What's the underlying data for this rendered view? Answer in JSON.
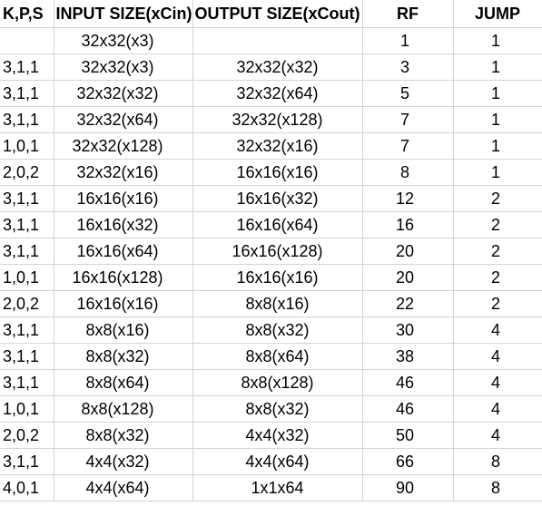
{
  "table": {
    "headers": [
      "K,P,S",
      "INPUT SIZE(xCin)",
      "OUTPUT SIZE(xCout)",
      "RF",
      "JUMP"
    ],
    "rows": [
      {
        "kps": "",
        "input": "32x32(x3)",
        "output": "",
        "rf": "1",
        "jump": "1"
      },
      {
        "kps": "3,1,1",
        "input": "32x32(x3)",
        "output": "32x32(x32)",
        "rf": "3",
        "jump": "1"
      },
      {
        "kps": "3,1,1",
        "input": "32x32(x32)",
        "output": "32x32(x64)",
        "rf": "5",
        "jump": "1"
      },
      {
        "kps": "3,1,1",
        "input": "32x32(x64)",
        "output": "32x32(x128)",
        "rf": "7",
        "jump": "1"
      },
      {
        "kps": "1,0,1",
        "input": "32x32(x128)",
        "output": "32x32(x16)",
        "rf": "7",
        "jump": "1"
      },
      {
        "kps": "2,0,2",
        "input": "32x32(x16)",
        "output": "16x16(x16)",
        "rf": "8",
        "jump": "1"
      },
      {
        "kps": "3,1,1",
        "input": "16x16(x16)",
        "output": "16x16(x32)",
        "rf": "12",
        "jump": "2"
      },
      {
        "kps": "3,1,1",
        "input": "16x16(x32)",
        "output": "16x16(x64)",
        "rf": "16",
        "jump": "2"
      },
      {
        "kps": "3,1,1",
        "input": "16x16(x64)",
        "output": "16x16(x128)",
        "rf": "20",
        "jump": "2"
      },
      {
        "kps": "1,0,1",
        "input": "16x16(x128)",
        "output": "16x16(x16)",
        "rf": "20",
        "jump": "2"
      },
      {
        "kps": "2,0,2",
        "input": "16x16(x16)",
        "output": "8x8(x16)",
        "rf": "22",
        "jump": "2"
      },
      {
        "kps": "3,1,1",
        "input": "8x8(x16)",
        "output": "8x8(x32)",
        "rf": "30",
        "jump": "4"
      },
      {
        "kps": "3,1,1",
        "input": "8x8(x32)",
        "output": "8x8(x64)",
        "rf": "38",
        "jump": "4"
      },
      {
        "kps": "3,1,1",
        "input": "8x8(x64)",
        "output": "8x8(x128)",
        "rf": "46",
        "jump": "4"
      },
      {
        "kps": "1,0,1",
        "input": "8x8(x128)",
        "output": "8x8(x32)",
        "rf": "46",
        "jump": "4"
      },
      {
        "kps": "2,0,2",
        "input": "8x8(x32)",
        "output": "4x4(x32)",
        "rf": "50",
        "jump": "4"
      },
      {
        "kps": "3,1,1",
        "input": "4x4(x32)",
        "output": "4x4(x64)",
        "rf": "66",
        "jump": "8"
      },
      {
        "kps": "4,0,1",
        "input": "4x4(x64)",
        "output": "1x1x64",
        "rf": "90",
        "jump": "8"
      }
    ]
  }
}
